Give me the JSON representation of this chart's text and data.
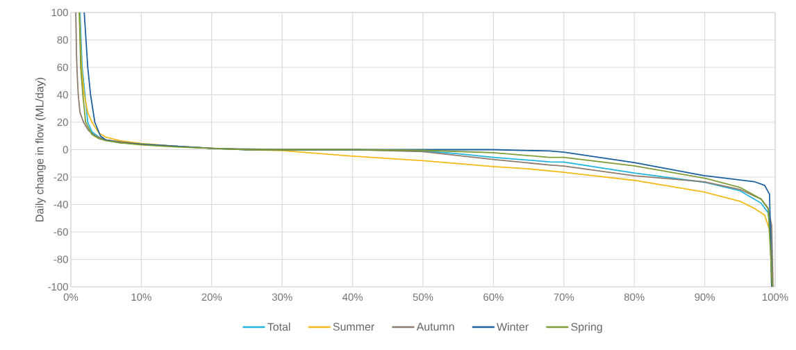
{
  "chart_data": {
    "type": "line",
    "ylabel": "Daily change in flow (ML/day)",
    "xlim": [
      0,
      100
    ],
    "ylim": [
      -100,
      100
    ],
    "xticks": [
      {
        "value": 0,
        "label": "0%"
      },
      {
        "value": 10,
        "label": "10%"
      },
      {
        "value": 20,
        "label": "20%"
      },
      {
        "value": 30,
        "label": "30%"
      },
      {
        "value": 40,
        "label": "40%"
      },
      {
        "value": 50,
        "label": "50%"
      },
      {
        "value": 60,
        "label": "60%"
      },
      {
        "value": 70,
        "label": "70%"
      },
      {
        "value": 80,
        "label": "80%"
      },
      {
        "value": 90,
        "label": "90%"
      },
      {
        "value": 100,
        "label": "100%"
      }
    ],
    "yticks": [
      -100,
      -80,
      -60,
      -40,
      -20,
      0,
      20,
      40,
      60,
      80,
      100
    ],
    "grid": true,
    "legend": "bottom",
    "marker": "none",
    "line_style": "solid",
    "series": [
      {
        "name": "Total",
        "color": "#1fb4e0",
        "x": [
          1.3,
          1.6,
          2.0,
          2.4,
          3,
          4,
          5,
          7,
          10,
          15,
          20,
          25,
          30,
          40,
          50,
          55,
          60,
          68,
          70,
          80,
          90,
          95,
          98,
          99,
          99.4,
          99.6
        ],
        "values": [
          100,
          60,
          40,
          20,
          13,
          9,
          7,
          5.5,
          4,
          2.5,
          1,
          0,
          0,
          0,
          -1,
          -3,
          -5.6,
          -8.9,
          -9,
          -17,
          -23.8,
          -30,
          -39,
          -46,
          -60,
          -100
        ]
      },
      {
        "name": "Summer",
        "color": "#f5b915",
        "x": [
          1.2,
          1.5,
          1.9,
          2.4,
          3,
          4,
          5,
          7,
          10,
          15,
          20,
          25,
          30,
          40,
          50,
          60,
          65,
          70,
          80,
          90,
          95,
          97,
          98.5,
          99.3,
          99.5
        ],
        "values": [
          100,
          60,
          40,
          27,
          20,
          12,
          9,
          6.5,
          4.5,
          2.5,
          1,
          0,
          -0.7,
          -4.7,
          -8,
          -12.3,
          -14,
          -16.5,
          -22.4,
          -31,
          -37.6,
          -42.7,
          -47.7,
          -60,
          -100
        ]
      },
      {
        "name": "Autumn",
        "color": "#8c7b6b",
        "x": [
          0.7,
          0.8,
          0.9,
          1.05,
          1.3,
          1.8,
          2.5,
          3.5,
          5,
          10,
          20,
          30,
          40,
          50,
          60,
          68,
          70,
          80,
          90,
          95,
          98,
          99,
          99.5,
          99.7
        ],
        "values": [
          100,
          70,
          55,
          40,
          27,
          20,
          14,
          10,
          7,
          4,
          1,
          0,
          0,
          -1.5,
          -7.2,
          -11.2,
          -12,
          -19,
          -23.5,
          -29,
          -36,
          -43,
          -55,
          -100
        ]
      },
      {
        "name": "Winter",
        "color": "#1a5f9e",
        "x": [
          1.9,
          2.4,
          2.8,
          3.4,
          4.2,
          5,
          7,
          10,
          15,
          20,
          25,
          30,
          40,
          50,
          60,
          68,
          70,
          80,
          90,
          97,
          98.5,
          99.2,
          99.5
        ],
        "values": [
          100,
          60,
          40,
          20,
          10,
          7,
          5,
          4,
          2.5,
          1,
          0,
          0,
          0,
          0,
          0,
          -1,
          -1.8,
          -9.4,
          -19,
          -23.3,
          -26,
          -32.5,
          -100
        ]
      },
      {
        "name": "Spring",
        "color": "#7e9c35",
        "x": [
          1.2,
          1.4,
          1.7,
          2.1,
          3,
          4,
          5,
          7,
          10,
          15,
          20,
          25,
          30,
          40,
          50,
          60,
          68,
          70,
          80,
          90,
          95,
          98,
          99,
          99.6
        ],
        "values": [
          100,
          60,
          40,
          20,
          11,
          8,
          6.5,
          5,
          3.5,
          2,
          1,
          0,
          0,
          0,
          -0.5,
          -2.2,
          -5.6,
          -5.6,
          -11.8,
          -20.8,
          -27.5,
          -36,
          -42.7,
          -100
        ]
      }
    ]
  }
}
